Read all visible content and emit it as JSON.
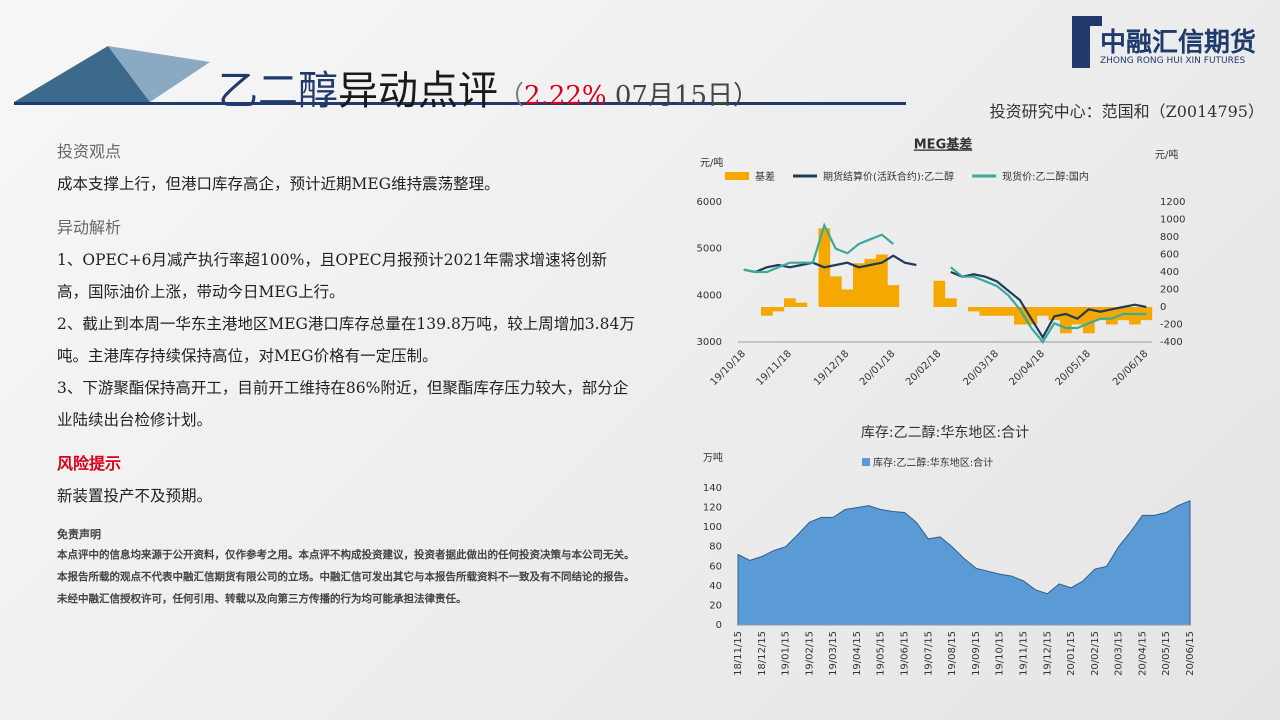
{
  "header": {
    "title_parts": [
      "乙二醇",
      "异动点评",
      "（",
      "2.22%",
      " 07月15日）"
    ],
    "logo_name": "中融汇信期货",
    "logo_en": "ZHONG RONG HUI XIN FUTURES",
    "author": "投资研究中心：范国和（Z0014795）"
  },
  "sections": [
    {
      "heading": "投资观点",
      "paragraphs": [
        "成本支撑上行，但港口库存高企，预计近期MEG维持震荡整理。"
      ]
    },
    {
      "heading": "异动解析",
      "paragraphs": [
        "1、OPEC+6月减产执行率超100%，且OPEC月报预计2021年需求增速将创新高，国际油价上涨，带动今日MEG上行。",
        "2、截止到本周一华东主港地区MEG港口库存总量在139.8万吨，较上周增加3.84万吨。主港库存持续保持高位，对MEG价格有一定压制。",
        "3、下游聚酯保持高开工，目前开工维持在86%附近，但聚酯库存压力较大，部分企业陆续出台检修计划。"
      ]
    },
    {
      "heading": "风险提示",
      "paragraphs": [
        "新装置投产不及预期。"
      ]
    },
    {
      "heading": "免责声明",
      "paragraphs": [
        "本点评中的信息均来源于公开资料，仅作参考之用。本点评不构成投资建议，投资者据此做出的任何投资决策与本公司无关。本报告所载的观点不代表中融汇信期货有限公司的立场。中融汇信可发出其它与本报告所载资料不一致及有不同结论的报告。未经中融汇信授权许可，任何引用、转载以及向第三方传播的行为均可能承担法律责任。"
      ]
    }
  ],
  "chart_data": [
    {
      "type": "combo",
      "title": "MEG基差",
      "y_label": "元/吨",
      "y2_label": "元/吨",
      "categories": [
        "19/10/18",
        null,
        null,
        null,
        "19/11/18",
        null,
        null,
        null,
        null,
        "19/12/18",
        null,
        null,
        null,
        "20/01/18",
        null,
        null,
        null,
        "20/02/18",
        null,
        null,
        null,
        null,
        "20/03/18",
        null,
        null,
        null,
        "20/04/18",
        null,
        null,
        null,
        "20/05/18",
        null,
        null,
        null,
        null,
        "20/06/18"
      ],
      "series": [
        {
          "name": "基差",
          "type": "bar",
          "axis": "y2",
          "color": "#f5a800",
          "values": [
            0,
            0,
            -100,
            -50,
            100,
            50,
            0,
            900,
            350,
            200,
            500,
            550,
            600,
            250,
            0,
            0,
            0,
            300,
            100,
            0,
            -50,
            -100,
            -100,
            -100,
            -200,
            -200,
            -100,
            -150,
            -300,
            -200,
            -300,
            -150,
            -200,
            -150,
            -200,
            -150
          ]
        },
        {
          "name": "期货结算价(活跃合约):乙二醇",
          "type": "line",
          "color": "#1f3a5a",
          "values": [
            4550,
            4500,
            4600,
            4650,
            4600,
            4650,
            4700,
            4600,
            4650,
            4700,
            4600,
            4650,
            4700,
            4850,
            4700,
            4650,
            null,
            null,
            4500,
            4400,
            4450,
            4400,
            4300,
            4100,
            3900,
            3500,
            3100,
            3550,
            3600,
            3500,
            3700,
            3650,
            3700,
            3750,
            3800,
            3750
          ]
        },
        {
          "name": "现货价:乙二醇:国内",
          "type": "line",
          "color": "#3aaa9a",
          "values": [
            4550,
            4500,
            4500,
            4600,
            4700,
            4700,
            4700,
            5500,
            5000,
            4900,
            5100,
            5200,
            5300,
            5100,
            null,
            null,
            null,
            null,
            4600,
            4400,
            4400,
            4300,
            4200,
            4000,
            3700,
            3300,
            3000,
            3400,
            3300,
            3300,
            3400,
            3500,
            3500,
            3600,
            3600,
            3600
          ]
        }
      ],
      "ylim": [
        3000,
        6000
      ],
      "yticks": [
        3000,
        4000,
        5000,
        6000
      ],
      "y2lim": [
        -400,
        1200
      ],
      "y2ticks": [
        -400,
        -200,
        0,
        200,
        400,
        600,
        800,
        1000,
        1200
      ]
    },
    {
      "type": "area",
      "title": "库存:乙二醇:华东地区:合计",
      "y_label": "万吨",
      "categories": [
        "18/11/15",
        null,
        "18/12/15",
        null,
        "19/01/15",
        null,
        "19/02/15",
        null,
        "19/03/15",
        null,
        "19/04/15",
        null,
        "19/05/15",
        null,
        "19/06/15",
        null,
        "19/07/15",
        null,
        "19/08/15",
        null,
        "19/09/15",
        null,
        "19/10/15",
        null,
        "19/11/15",
        null,
        "19/12/15",
        null,
        "20/01/15",
        null,
        "20/02/15",
        null,
        "20/03/15",
        null,
        "20/04/15",
        null,
        "20/05/15",
        null,
        "20/06/15"
      ],
      "series": [
        {
          "name": "库存:乙二醇:华东地区:合计",
          "color": "#5b9bd5",
          "values": [
            72,
            66,
            70,
            76,
            80,
            92,
            105,
            110,
            110,
            118,
            120,
            122,
            118,
            116,
            115,
            105,
            88,
            90,
            80,
            68,
            58,
            55,
            52,
            50,
            45,
            36,
            32,
            42,
            38,
            45,
            57,
            60,
            80,
            95,
            112,
            112,
            115,
            122,
            127
          ]
        }
      ],
      "ylim": [
        0,
        140
      ],
      "yticks": [
        0,
        20,
        40,
        60,
        80,
        100,
        120,
        140
      ]
    }
  ]
}
